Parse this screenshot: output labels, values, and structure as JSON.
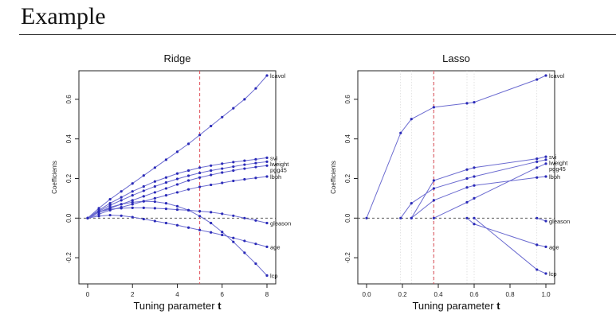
{
  "slide": {
    "title": "Example"
  },
  "chart_data": [
    {
      "type": "line",
      "title": "Ridge",
      "xlabel": "Tuning parameter",
      "xlabel_var": "t",
      "ylabel": "Coefficients",
      "xlim": [
        0,
        8
      ],
      "ylim": [
        -0.3,
        0.72
      ],
      "xticks": [
        0,
        2,
        4,
        6,
        8
      ],
      "yticks": [
        -0.2,
        0.0,
        0.2,
        0.4,
        0.6
      ],
      "xtick_labels": [
        "0",
        "2",
        "4",
        "6",
        "8"
      ],
      "ytick_labels": [
        "-0.2",
        "0.0",
        "0.2",
        "0.4",
        "0.6"
      ],
      "reference_line": {
        "x": 5.0,
        "color": "#e0505a"
      },
      "x": [
        0,
        0.5,
        1,
        1.5,
        2,
        2.5,
        3,
        3.5,
        4,
        4.5,
        5,
        5.5,
        6,
        6.5,
        7,
        7.5,
        8
      ],
      "series": [
        {
          "name": "lcavol",
          "values": [
            0,
            0.05,
            0.095,
            0.135,
            0.175,
            0.215,
            0.255,
            0.295,
            0.335,
            0.375,
            0.42,
            0.465,
            0.51,
            0.555,
            0.6,
            0.655,
            0.72
          ]
        },
        {
          "name": "svi",
          "values": [
            0,
            0.04,
            0.075,
            0.105,
            0.135,
            0.16,
            0.185,
            0.205,
            0.225,
            0.24,
            0.255,
            0.265,
            0.275,
            0.283,
            0.29,
            0.297,
            0.305
          ]
        },
        {
          "name": "lweight",
          "values": [
            0,
            0.035,
            0.065,
            0.09,
            0.115,
            0.138,
            0.16,
            0.18,
            0.198,
            0.214,
            0.228,
            0.24,
            0.25,
            0.26,
            0.27,
            0.278,
            0.285
          ]
        },
        {
          "name": "pgg45",
          "values": [
            0,
            0.03,
            0.05,
            0.07,
            0.09,
            0.11,
            0.13,
            0.15,
            0.17,
            0.19,
            0.205,
            0.218,
            0.23,
            0.24,
            0.25,
            0.258,
            0.265
          ]
        },
        {
          "name": "lbph",
          "values": [
            0,
            0.02,
            0.04,
            0.055,
            0.07,
            0.085,
            0.1,
            0.115,
            0.13,
            0.145,
            0.158,
            0.168,
            0.178,
            0.188,
            0.196,
            0.203,
            0.21
          ]
        },
        {
          "name": "gleason",
          "values": [
            0,
            0.03,
            0.045,
            0.05,
            0.052,
            0.052,
            0.05,
            0.047,
            0.043,
            0.04,
            0.035,
            0.03,
            0.022,
            0.012,
            0.0,
            -0.012,
            -0.025
          ]
        },
        {
          "name": "age",
          "values": [
            0,
            0.01,
            0.015,
            0.012,
            0.005,
            -0.005,
            -0.015,
            -0.025,
            -0.036,
            -0.048,
            -0.06,
            -0.072,
            -0.085,
            -0.1,
            -0.115,
            -0.13,
            -0.145
          ]
        },
        {
          "name": "lcp",
          "values": [
            0,
            0.03,
            0.055,
            0.07,
            0.08,
            0.085,
            0.083,
            0.075,
            0.06,
            0.04,
            0.01,
            -0.025,
            -0.07,
            -0.12,
            -0.175,
            -0.23,
            -0.29
          ]
        }
      ]
    },
    {
      "type": "line",
      "title": "Lasso",
      "xlabel": "Tuning parameter",
      "xlabel_var": "t",
      "ylabel": "Coefficients",
      "xlim": [
        0,
        1.0
      ],
      "ylim": [
        -0.3,
        0.72
      ],
      "xticks": [
        0,
        0.2,
        0.4,
        0.6,
        0.8,
        1.0
      ],
      "yticks": [
        -0.2,
        0.0,
        0.2,
        0.4,
        0.6
      ],
      "xtick_labels": [
        "0.0",
        "0.2",
        "0.4",
        "0.6",
        "0.8",
        "1.0"
      ],
      "ytick_labels": [
        "-0.2",
        "0.0",
        "0.2",
        "0.4",
        "0.6"
      ],
      "reference_line": {
        "x": 0.375,
        "color": "#e0505a"
      },
      "knots": [
        0.19,
        0.25,
        0.37,
        0.56,
        0.6,
        0.95
      ],
      "series": [
        {
          "name": "lcavol",
          "x": [
            0,
            0.19,
            0.25,
            0.375,
            0.56,
            0.6,
            0.95,
            1.0
          ],
          "values": [
            0,
            0.43,
            0.5,
            0.56,
            0.58,
            0.585,
            0.7,
            0.72
          ]
        },
        {
          "name": "svi",
          "x": [
            0.25,
            0.375,
            0.56,
            0.6,
            0.95,
            1.0
          ],
          "values": [
            0,
            0.19,
            0.245,
            0.255,
            0.3,
            0.31
          ]
        },
        {
          "name": "lweight",
          "x": [
            0.19,
            0.25,
            0.375,
            0.56,
            0.6,
            0.95,
            1.0
          ],
          "values": [
            0,
            0.075,
            0.15,
            0.2,
            0.21,
            0.285,
            0.295
          ]
        },
        {
          "name": "pgg45",
          "x": [
            0.375,
            0.56,
            0.6,
            0.95,
            1.0
          ],
          "values": [
            0,
            0.08,
            0.1,
            0.255,
            0.275
          ]
        },
        {
          "name": "lbph",
          "x": [
            0.25,
            0.375,
            0.56,
            0.6,
            0.95,
            1.0
          ],
          "values": [
            0,
            0.09,
            0.155,
            0.165,
            0.205,
            0.21
          ]
        },
        {
          "name": "gleason",
          "x": [
            0.95,
            1.0
          ],
          "values": [
            0,
            -0.015
          ]
        },
        {
          "name": "age",
          "x": [
            0.56,
            0.6,
            0.95,
            1.0
          ],
          "values": [
            0,
            -0.03,
            -0.135,
            -0.145
          ]
        },
        {
          "name": "lcp",
          "x": [
            0.6,
            0.95,
            1.0
          ],
          "values": [
            0,
            -0.26,
            -0.28
          ]
        }
      ]
    }
  ]
}
